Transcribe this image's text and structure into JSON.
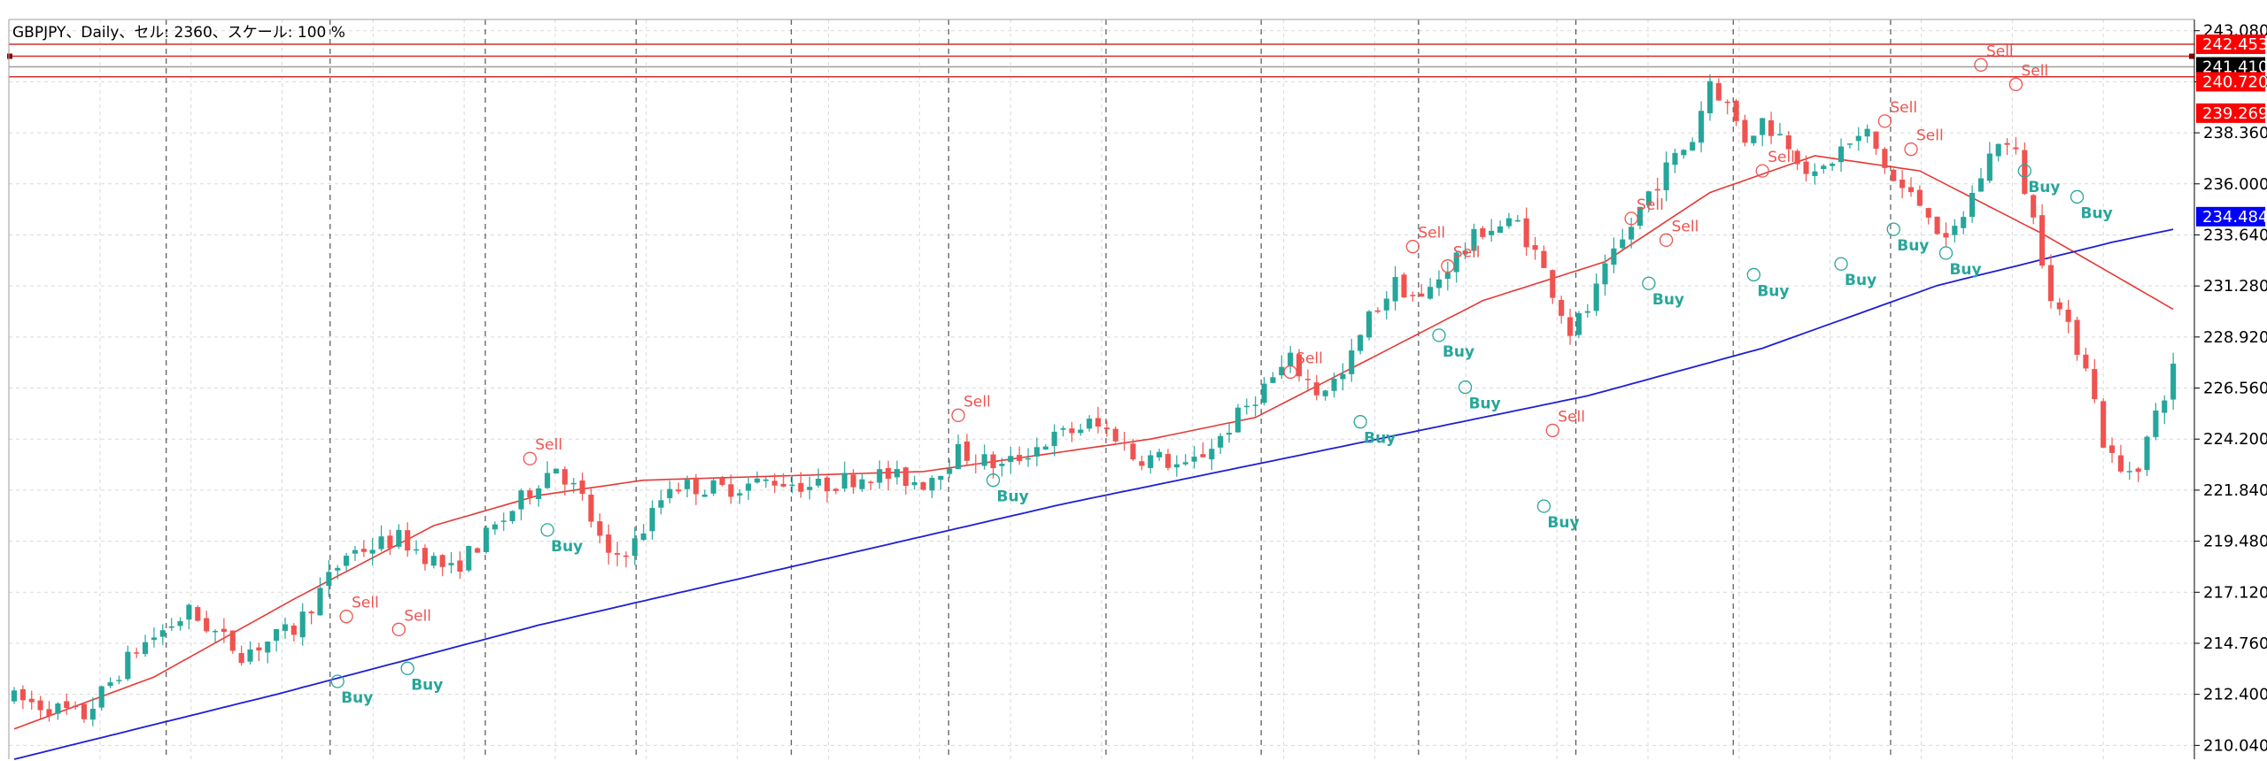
{
  "header": {
    "symbol_info": "GBPJPY、Daily、セル: 2360、スケール: 100 %"
  },
  "chart_data": {
    "type": "candlestick",
    "symbol": "GBPJPY",
    "timeframe": "Daily",
    "ylim": [
      209.4,
      243.6
    ],
    "y_ticks": [
      "243.080",
      "240.720",
      "238.360",
      "236.000",
      "233.640",
      "231.280",
      "228.920",
      "226.560",
      "224.200",
      "221.840",
      "219.480",
      "217.120",
      "214.760",
      "212.400",
      "210.040"
    ],
    "bar_count": 248,
    "current_price": {
      "label": "241.410",
      "value": 241.41
    },
    "price_badges": [
      {
        "label": "242.453",
        "value": 242.453,
        "bg": "#ff0000",
        "fg": "#ffffff"
      },
      {
        "label": "241.410",
        "value": 241.41,
        "bg": "#000000",
        "fg": "#ffffff"
      },
      {
        "label": "240.720",
        "value": 240.72,
        "bg": "#ff0000",
        "fg": "#ffffff"
      },
      {
        "label": "239.269",
        "value": 239.269,
        "bg": "#ff0000",
        "fg": "#ffffff"
      },
      {
        "label": "234.484",
        "value": 234.484,
        "bg": "#0000ff",
        "fg": "#ffffff"
      }
    ],
    "horizontal_lines": [
      {
        "value": 242.453,
        "color": "#d32f2f"
      },
      {
        "value": 241.9,
        "color": "#d32f2f"
      },
      {
        "value": 241.41,
        "color": "#9e9e9e"
      },
      {
        "value": 240.95,
        "color": "#d32f2f"
      }
    ],
    "period_separators": [
      0.072,
      0.147,
      0.218,
      0.287,
      0.358,
      0.43,
      0.502,
      0.573,
      0.645,
      0.717,
      0.789,
      0.861
    ],
    "anchors": [
      [
        0,
        212.2
      ],
      [
        8,
        211.4
      ],
      [
        14,
        214.5
      ],
      [
        20,
        216.2
      ],
      [
        26,
        214.3
      ],
      [
        32,
        215.4
      ],
      [
        38,
        218.9
      ],
      [
        44,
        219.6
      ],
      [
        50,
        218.1
      ],
      [
        56,
        220.5
      ],
      [
        60,
        222.3
      ],
      [
        62,
        223.0
      ],
      [
        65,
        221.4
      ],
      [
        68,
        218.6
      ],
      [
        71,
        219.4
      ],
      [
        75,
        222.1
      ],
      [
        81,
        221.9
      ],
      [
        87,
        222.3
      ],
      [
        92,
        222.0
      ],
      [
        98,
        222.6
      ],
      [
        104,
        222.2
      ],
      [
        108,
        223.6
      ],
      [
        113,
        222.9
      ],
      [
        118,
        224.1
      ],
      [
        123,
        224.9
      ],
      [
        126,
        224.4
      ],
      [
        128,
        223.4
      ],
      [
        131,
        223.3
      ],
      [
        134,
        222.8
      ],
      [
        138,
        224.3
      ],
      [
        142,
        226.2
      ],
      [
        146,
        227.8
      ],
      [
        149,
        226.4
      ],
      [
        152,
        227.1
      ],
      [
        155,
        229.8
      ],
      [
        158,
        231.4
      ],
      [
        161,
        230.6
      ],
      [
        164,
        232.2
      ],
      [
        168,
        233.9
      ],
      [
        172,
        234.2
      ],
      [
        174,
        232.8
      ],
      [
        176,
        231.1
      ],
      [
        178,
        229.2
      ],
      [
        180,
        230.2
      ],
      [
        182,
        231.9
      ],
      [
        184,
        233.3
      ],
      [
        187,
        235.6
      ],
      [
        190,
        237.2
      ],
      [
        192,
        238.1
      ],
      [
        194,
        240.8
      ],
      [
        196,
        239.6
      ],
      [
        198,
        238.1
      ],
      [
        200,
        238.9
      ],
      [
        203,
        237.9
      ],
      [
        206,
        236.2
      ],
      [
        209,
        237.6
      ],
      [
        212,
        238.3
      ],
      [
        215,
        236.1
      ],
      [
        217,
        235.4
      ],
      [
        219,
        234.8
      ],
      [
        221,
        233.1
      ],
      [
        223,
        234.6
      ],
      [
        225,
        236.4
      ],
      [
        227,
        238.1
      ],
      [
        229,
        237.3
      ],
      [
        231,
        234.3
      ],
      [
        233,
        231.0
      ],
      [
        235,
        229.2
      ],
      [
        237,
        227.8
      ],
      [
        239,
        224.1
      ],
      [
        241,
        222.6
      ],
      [
        243,
        223.1
      ],
      [
        245,
        225.3
      ],
      [
        247,
        227.4
      ]
    ],
    "ma_fast": {
      "color": "#e53935",
      "anchors": [
        [
          0,
          210.8
        ],
        [
          16,
          213.2
        ],
        [
          32,
          216.8
        ],
        [
          48,
          220.2
        ],
        [
          60,
          221.6
        ],
        [
          72,
          222.3
        ],
        [
          88,
          222.5
        ],
        [
          104,
          222.7
        ],
        [
          118,
          223.5
        ],
        [
          130,
          224.2
        ],
        [
          142,
          225.2
        ],
        [
          156,
          228.1
        ],
        [
          168,
          230.6
        ],
        [
          182,
          232.4
        ],
        [
          194,
          235.6
        ],
        [
          206,
          237.3
        ],
        [
          218,
          236.6
        ],
        [
          232,
          233.7
        ],
        [
          247,
          230.2
        ]
      ]
    },
    "ma_slow": {
      "color": "#1e1ed6",
      "anchors": [
        [
          0,
          209.4
        ],
        [
          30,
          212.4
        ],
        [
          60,
          215.6
        ],
        [
          90,
          218.4
        ],
        [
          120,
          221.2
        ],
        [
          150,
          223.7
        ],
        [
          180,
          226.2
        ],
        [
          200,
          228.4
        ],
        [
          220,
          231.3
        ],
        [
          240,
          233.3
        ],
        [
          247,
          233.9
        ]
      ]
    },
    "signals": [
      {
        "kind": "Sell",
        "i": 225,
        "v": 241.5
      },
      {
        "kind": "Sell",
        "i": 229,
        "v": 240.6
      },
      {
        "kind": "Buy",
        "i": 230,
        "v": 236.6
      },
      {
        "kind": "Buy",
        "i": 236,
        "v": 235.4
      },
      {
        "kind": "Sell",
        "i": 214,
        "v": 238.9
      },
      {
        "kind": "Sell",
        "i": 217,
        "v": 237.6
      },
      {
        "kind": "Buy",
        "i": 215,
        "v": 233.9
      },
      {
        "kind": "Buy",
        "i": 221,
        "v": 232.8
      },
      {
        "kind": "Sell",
        "i": 200,
        "v": 236.6
      },
      {
        "kind": "Buy",
        "i": 199,
        "v": 231.8
      },
      {
        "kind": "Buy",
        "i": 209,
        "v": 232.3
      },
      {
        "kind": "Sell",
        "i": 185,
        "v": 234.4
      },
      {
        "kind": "Sell",
        "i": 189,
        "v": 233.4
      },
      {
        "kind": "Buy",
        "i": 187,
        "v": 231.4
      },
      {
        "kind": "Sell",
        "i": 160,
        "v": 233.1
      },
      {
        "kind": "Sell",
        "i": 164,
        "v": 232.2
      },
      {
        "kind": "Buy",
        "i": 163,
        "v": 229.0
      },
      {
        "kind": "Buy",
        "i": 166,
        "v": 226.6
      },
      {
        "kind": "Sell",
        "i": 146,
        "v": 227.3
      },
      {
        "kind": "Buy",
        "i": 154,
        "v": 225.0
      },
      {
        "kind": "Sell",
        "i": 108,
        "v": 225.3
      },
      {
        "kind": "Buy",
        "i": 112,
        "v": 222.3
      },
      {
        "kind": "Sell",
        "i": 176,
        "v": 224.6
      },
      {
        "kind": "Buy",
        "i": 175,
        "v": 221.1
      },
      {
        "kind": "Sell",
        "i": 59,
        "v": 223.3
      },
      {
        "kind": "Buy",
        "i": 61,
        "v": 220.0
      },
      {
        "kind": "Sell",
        "i": 38,
        "v": 216.0
      },
      {
        "kind": "Sell",
        "i": 44,
        "v": 215.4
      },
      {
        "kind": "Buy",
        "i": 37,
        "v": 213.0
      },
      {
        "kind": "Buy",
        "i": 45,
        "v": 213.6
      }
    ],
    "colors": {
      "bull": "#26a69a",
      "bear": "#ef5350",
      "grid": "#d9d9d9",
      "separator": "#555555",
      "axis": "#000000"
    }
  }
}
